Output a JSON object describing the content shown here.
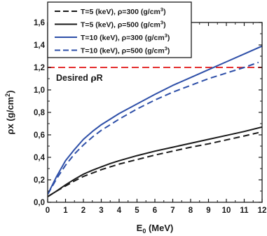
{
  "chart_data": {
    "type": "line",
    "title": "",
    "xlabel": "E0 (MeV)",
    "xlabel_parts": {
      "main": "E",
      "sub": "0",
      "rest": " (MeV)"
    },
    "ylabel": "ρx (g/cm2)",
    "ylabel_parts": {
      "main": "ρx (g/cm",
      "sup": "2",
      "rest": ")"
    },
    "xlim": [
      0,
      12
    ],
    "ylim": [
      0,
      1.6
    ],
    "xticks": [
      "0",
      "1",
      "2",
      "3",
      "4",
      "5",
      "6",
      "7",
      "8",
      "9",
      "10",
      "11",
      "12"
    ],
    "yticks": [
      "0,0",
      "0,2",
      "0,4",
      "0,6",
      "0,8",
      "1,0",
      "1,2",
      "1,4",
      "1,6"
    ],
    "grid": false,
    "legend_position": "top-left",
    "series": [
      {
        "name": "T=5 (keV), ρ=300 (g/cm3)",
        "label_parts": {
          "main": "T=5 (keV), ρ=300 (g/cm",
          "sup": "3",
          "rest": ")"
        },
        "color": "#1a1a1a",
        "dash": "dashed",
        "x": [
          0,
          0.5,
          1,
          1.5,
          2,
          2.5,
          3,
          3.5,
          4,
          5,
          6,
          7,
          8,
          9,
          10,
          11,
          11.8
        ],
        "y": [
          0.05,
          0.1,
          0.145,
          0.19,
          0.23,
          0.26,
          0.29,
          0.315,
          0.34,
          0.38,
          0.42,
          0.455,
          0.49,
          0.52,
          0.555,
          0.59,
          0.62
        ]
      },
      {
        "name": "T=5 (keV), ρ=500 (g/cm3)",
        "label_parts": {
          "main": "T=5 (keV), ρ=500 (g/cm",
          "sup": "3",
          "rest": ")"
        },
        "color": "#1a1a1a",
        "dash": "solid",
        "x": [
          0,
          0.5,
          1,
          1.5,
          2,
          2.5,
          3,
          3.5,
          4,
          5,
          6,
          7,
          8,
          9,
          10,
          11,
          12
        ],
        "y": [
          0.05,
          0.1,
          0.155,
          0.205,
          0.25,
          0.285,
          0.315,
          0.345,
          0.37,
          0.415,
          0.455,
          0.49,
          0.525,
          0.56,
          0.595,
          0.63,
          0.67
        ]
      },
      {
        "name": "T=10 (keV), ρ=300 (g/cm3)",
        "label_parts": {
          "main": "T=10 (keV), ρ=300 (g/cm",
          "sup": "3",
          "rest": ")"
        },
        "color": "#2e4fa8",
        "dash": "solid",
        "x": [
          0,
          0.5,
          1,
          1.5,
          2,
          2.5,
          3,
          3.5,
          4,
          5,
          6,
          7,
          8,
          9,
          10,
          11,
          12
        ],
        "y": [
          0.07,
          0.23,
          0.37,
          0.47,
          0.56,
          0.63,
          0.69,
          0.74,
          0.79,
          0.875,
          0.96,
          1.04,
          1.11,
          1.18,
          1.25,
          1.32,
          1.39
        ]
      },
      {
        "name": "T=10 (keV), ρ=500 (g/cm3)",
        "label_parts": {
          "main": "T=10 (keV), ρ=500 (g/cm",
          "sup": "3",
          "rest": ")"
        },
        "color": "#2e4fa8",
        "dash": "dashed",
        "x": [
          0,
          0.5,
          1,
          1.5,
          2,
          2.5,
          3,
          3.5,
          4,
          5,
          6,
          7,
          8,
          9,
          10,
          11,
          11.8
        ],
        "y": [
          0.07,
          0.21,
          0.33,
          0.43,
          0.51,
          0.58,
          0.64,
          0.69,
          0.74,
          0.83,
          0.91,
          0.98,
          1.04,
          1.1,
          1.15,
          1.2,
          1.245
        ]
      }
    ],
    "annotations": [
      {
        "type": "hline",
        "y": 1.2,
        "color": "#e53030",
        "dash": "dashed",
        "label_parts": {
          "main": "Desired ",
          "greek": "ρ",
          "rest": "R"
        },
        "label": "Desired ρR"
      }
    ]
  }
}
